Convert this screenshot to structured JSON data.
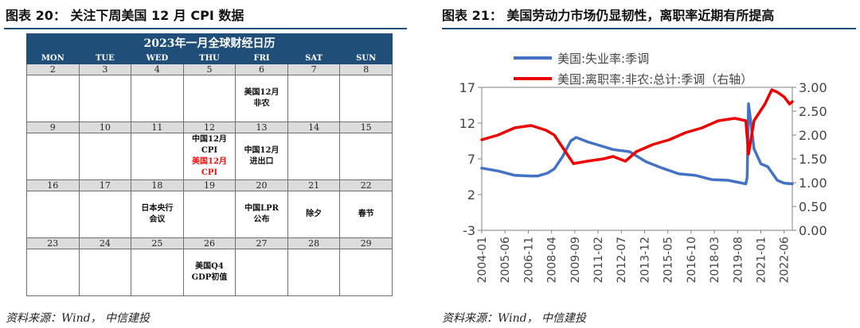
{
  "left": {
    "title": "图表 20：    关注下周美国 12 月 CPI 数据",
    "source": "资料来源：Wind，  中信建投",
    "calendar": {
      "title": "2023年一月全球财经日历",
      "weekdays": [
        "MON",
        "TUE",
        "WED",
        "THU",
        "FRI",
        "SAT",
        "SUN"
      ],
      "weeks": [
        {
          "dates": [
            "2",
            "3",
            "4",
            "5",
            "6",
            "7",
            "8"
          ],
          "events": [
            [],
            [],
            [],
            [],
            [
              {
                "text": "美国12月",
                "color": "#111111"
              },
              {
                "text": "非农",
                "color": "#111111"
              }
            ],
            [],
            []
          ]
        },
        {
          "dates": [
            "9",
            "10",
            "11",
            "12",
            "13",
            "14",
            "15"
          ],
          "events": [
            [],
            [],
            [],
            [
              {
                "text": "中国12月",
                "color": "#111111"
              },
              {
                "text": "CPI",
                "color": "#111111"
              },
              {
                "text": "美国12月",
                "color": "#ee1111"
              },
              {
                "text": "CPI",
                "color": "#ee1111"
              }
            ],
            [
              {
                "text": "中国12月",
                "color": "#111111"
              },
              {
                "text": "进出口",
                "color": "#111111"
              }
            ],
            [],
            []
          ]
        },
        {
          "dates": [
            "16",
            "17",
            "18",
            "19",
            "20",
            "21",
            "22"
          ],
          "events": [
            [],
            [],
            [
              {
                "text": "日本央行",
                "color": "#111111"
              },
              {
                "text": "会议",
                "color": "#111111"
              }
            ],
            [],
            [
              {
                "text": "中国LPR",
                "color": "#111111"
              },
              {
                "text": "公布",
                "color": "#111111"
              }
            ],
            [
              {
                "text": "除夕",
                "color": "#111111"
              }
            ],
            [
              {
                "text": "春节",
                "color": "#111111"
              }
            ]
          ]
        },
        {
          "dates": [
            "23",
            "24",
            "25",
            "26",
            "27",
            "28",
            "29"
          ],
          "events": [
            [],
            [],
            [],
            [
              {
                "text": "美国Q4",
                "color": "#111111"
              },
              {
                "text": "GDP初值",
                "color": "#111111"
              }
            ],
            [],
            [],
            []
          ]
        }
      ]
    }
  },
  "right": {
    "title": "图表 21：    美国劳动力市场仍显韧性，离职率近期有所提高",
    "source": "资料来源：Wind，  中信建投"
  },
  "chart_data": {
    "type": "line",
    "title": "",
    "y_left": {
      "ticks": [
        -3,
        2,
        7,
        12,
        17
      ],
      "range": [
        -3,
        17
      ]
    },
    "y_right": {
      "ticks": [
        "0.00",
        "0.50",
        "1.00",
        "1.50",
        "2.00",
        "2.50",
        "3.00"
      ],
      "range": [
        0,
        3.0
      ]
    },
    "x_ticks": [
      "2004-01",
      "2005-06",
      "2006-11",
      "2008-04",
      "2009-09",
      "2011-02",
      "2012-07",
      "2013-12",
      "2015-05",
      "2016-10",
      "2018-03",
      "2019-08",
      "2021-01",
      "2022-06"
    ],
    "x_range": [
      "2004-01",
      "2022-12"
    ],
    "legend_position": "top",
    "series": [
      {
        "name": "美国:失业率:季调",
        "axis": "left",
        "color": "#4472c4",
        "points": [
          [
            "2004-01",
            5.7
          ],
          [
            "2005-01",
            5.3
          ],
          [
            "2006-01",
            4.7
          ],
          [
            "2007-01",
            4.6
          ],
          [
            "2007-06",
            4.6
          ],
          [
            "2008-01",
            5.0
          ],
          [
            "2008-06",
            5.6
          ],
          [
            "2008-12",
            7.3
          ],
          [
            "2009-06",
            9.5
          ],
          [
            "2009-10",
            10.0
          ],
          [
            "2010-06",
            9.4
          ],
          [
            "2011-01",
            9.0
          ],
          [
            "2012-01",
            8.3
          ],
          [
            "2013-01",
            8.0
          ],
          [
            "2014-01",
            6.6
          ],
          [
            "2015-01",
            5.7
          ],
          [
            "2016-01",
            4.9
          ],
          [
            "2017-01",
            4.7
          ],
          [
            "2018-01",
            4.1
          ],
          [
            "2019-01",
            4.0
          ],
          [
            "2020-02",
            3.5
          ],
          [
            "2020-03",
            4.4
          ],
          [
            "2020-04",
            14.7
          ],
          [
            "2020-05",
            13.2
          ],
          [
            "2020-08",
            8.4
          ],
          [
            "2021-01",
            6.3
          ],
          [
            "2021-06",
            5.9
          ],
          [
            "2022-01",
            4.0
          ],
          [
            "2022-06",
            3.6
          ],
          [
            "2022-12",
            3.5
          ]
        ]
      },
      {
        "name": "美国:离职率:非农:总计:季调（右轴）",
        "axis": "right",
        "color": "#ee0000",
        "points": [
          [
            "2004-01",
            1.9
          ],
          [
            "2005-01",
            2.0
          ],
          [
            "2006-01",
            2.15
          ],
          [
            "2007-01",
            2.2
          ],
          [
            "2007-12",
            2.1
          ],
          [
            "2008-06",
            2.0
          ],
          [
            "2009-01",
            1.7
          ],
          [
            "2009-08",
            1.4
          ],
          [
            "2010-06",
            1.45
          ],
          [
            "2011-06",
            1.5
          ],
          [
            "2012-01",
            1.55
          ],
          [
            "2012-10",
            1.45
          ],
          [
            "2013-06",
            1.65
          ],
          [
            "2014-06",
            1.8
          ],
          [
            "2015-06",
            1.9
          ],
          [
            "2016-06",
            2.05
          ],
          [
            "2017-06",
            2.15
          ],
          [
            "2018-06",
            2.3
          ],
          [
            "2019-06",
            2.35
          ],
          [
            "2020-02",
            2.3
          ],
          [
            "2020-04",
            1.6
          ],
          [
            "2020-08",
            2.3
          ],
          [
            "2021-04",
            2.65
          ],
          [
            "2021-09",
            2.95
          ],
          [
            "2022-01",
            2.9
          ],
          [
            "2022-06",
            2.8
          ],
          [
            "2022-10",
            2.65
          ],
          [
            "2022-12",
            2.7
          ]
        ]
      }
    ]
  }
}
